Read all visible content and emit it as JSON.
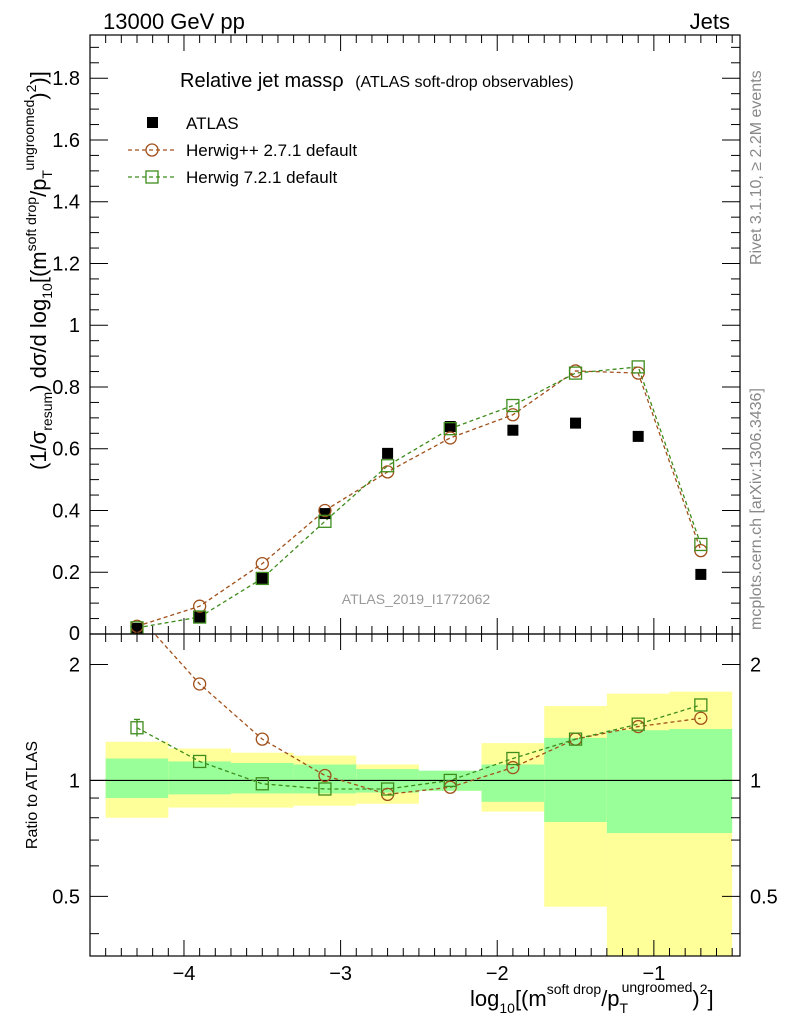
{
  "header": {
    "left": "13000 GeV pp",
    "right": "Jets"
  },
  "side_labels": {
    "rivet": "Rivet 3.1.10, ≥ 2.2M events",
    "mcplots": "mcplots.cern.ch [arXiv:1306.3436]"
  },
  "watermark": "ATLAS_2019_I1772062",
  "chart_data": {
    "type": "scatter",
    "title_main": "Relative jet massρ",
    "title_sub": "(ATLAS soft-drop observables)",
    "xlabel": {
      "prefix": "log",
      "sub10": "10",
      "open": "[(m",
      "sup1": "soft drop",
      "mid": "/p",
      "subT": "T",
      "sup2": "ungroomed",
      "close": ")",
      "sup3": "2",
      "end": "]"
    },
    "ylabel": {
      "a": "(1/σ",
      "resum": "resum",
      "b": ") dσ/d log",
      "ten": "10",
      "c": "[(m",
      "sd": "soft drop",
      "d": "/p",
      "T": "T",
      "ung": "ungroomed",
      "e": ")",
      "two": "2",
      "f": ")]"
    },
    "ratio_ylabel": "Ratio to ATLAS",
    "xlim": [
      -4.6,
      -0.45
    ],
    "ylim": [
      0,
      1.94
    ],
    "ratio_ylim": [
      0.35,
      2.4
    ],
    "x_ticks": [
      -4,
      -3,
      -2,
      -1
    ],
    "x_tick_labels": [
      "−4",
      "−3",
      "−2",
      "−1"
    ],
    "y_ticks": [
      0.2,
      0.4,
      0.6,
      0.8,
      1.0,
      1.2,
      1.4,
      1.6,
      1.8
    ],
    "y_tick_labels": [
      "0.2",
      "0.4",
      "0.6",
      "0.8",
      "1",
      "1.2",
      "1.4",
      "1.6",
      "1.8"
    ],
    "y_zero_label": "0",
    "ratio_ticks": [
      0.5,
      1,
      2
    ],
    "ratio_tick_labels": [
      "0.5",
      "1",
      "2"
    ],
    "x": [
      -4.3,
      -3.9,
      -3.5,
      -3.1,
      -2.7,
      -2.3,
      -1.9,
      -1.5,
      -1.1,
      -0.7
    ],
    "bin_edges": [
      -4.5,
      -4.1,
      -3.7,
      -3.3,
      -2.9,
      -2.5,
      -2.1,
      -1.7,
      -1.3,
      -0.9,
      -0.5
    ],
    "series": [
      {
        "name": "ATLAS",
        "color": "#000000",
        "values": [
          0.018,
          0.055,
          0.18,
          0.39,
          0.585,
          0.672,
          0.66,
          0.683,
          0.64,
          0.193
        ]
      },
      {
        "name": "Herwig++ 2.7.1 default",
        "color": "#a0501a",
        "values": [
          0.025,
          0.09,
          0.228,
          0.4,
          0.525,
          0.635,
          0.71,
          0.852,
          0.845,
          0.27
        ],
        "ratio": [
          2.7,
          1.78,
          1.28,
          1.03,
          0.92,
          0.96,
          1.08,
          1.28,
          1.38,
          1.45
        ]
      },
      {
        "name": "Herwig 7.2.1 default",
        "color": "#3e8c1c",
        "values": [
          0.02,
          0.055,
          0.18,
          0.365,
          0.545,
          0.665,
          0.74,
          0.845,
          0.865,
          0.29
        ],
        "ratio": [
          1.37,
          1.12,
          0.98,
          0.95,
          0.95,
          1.0,
          1.14,
          1.28,
          1.4,
          1.57
        ],
        "ratio_err": [
          0.07,
          0.02,
          0.01,
          0.01,
          0.01,
          0.01,
          0.01,
          0.01,
          0.01,
          0.02
        ]
      }
    ],
    "uncertainty_bands": {
      "stat_color": "#99ff99",
      "total_color": "#ffff99",
      "stat_lo": [
        0.9,
        0.92,
        0.925,
        0.925,
        0.93,
        0.94,
        0.88,
        0.78,
        0.73,
        0.73
      ],
      "stat_hi": [
        1.14,
        1.12,
        1.11,
        1.1,
        1.07,
        1.06,
        1.1,
        1.29,
        1.35,
        1.36
      ],
      "total_lo": [
        0.8,
        0.85,
        0.85,
        0.86,
        0.87,
        0.94,
        0.83,
        0.47,
        0.35,
        0.35
      ],
      "total_hi": [
        1.26,
        1.21,
        1.18,
        1.16,
        1.1,
        1.04,
        1.25,
        1.56,
        1.68,
        1.7
      ]
    }
  }
}
